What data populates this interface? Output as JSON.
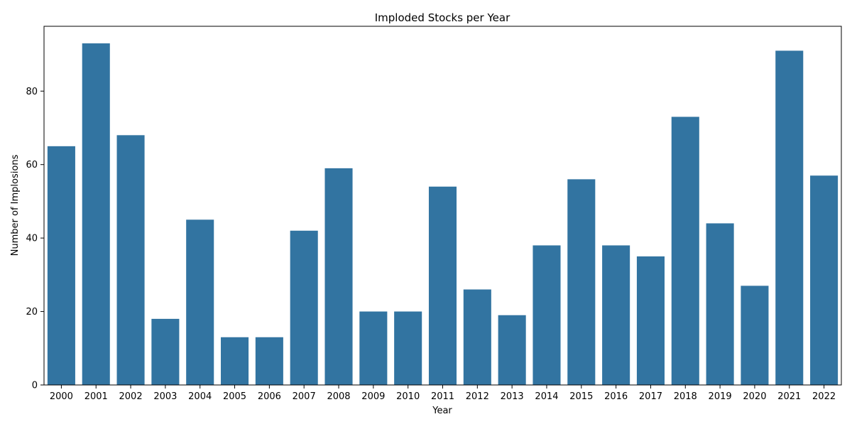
{
  "chart_data": {
    "type": "bar",
    "title": "Imploded Stocks per Year",
    "xlabel": "Year",
    "ylabel": "Number of Implosions",
    "categories": [
      "2000",
      "2001",
      "2002",
      "2003",
      "2004",
      "2005",
      "2006",
      "2007",
      "2008",
      "2009",
      "2010",
      "2011",
      "2012",
      "2013",
      "2014",
      "2015",
      "2016",
      "2017",
      "2018",
      "2019",
      "2020",
      "2021",
      "2022"
    ],
    "values": [
      65,
      93,
      68,
      18,
      45,
      13,
      13,
      42,
      59,
      20,
      20,
      54,
      26,
      19,
      38,
      56,
      38,
      35,
      73,
      44,
      27,
      91,
      57
    ],
    "ylim": [
      0,
      97.65
    ],
    "yticks": [
      0,
      20,
      40,
      60,
      80
    ],
    "grid": false,
    "bar_color": "#3274a1"
  }
}
